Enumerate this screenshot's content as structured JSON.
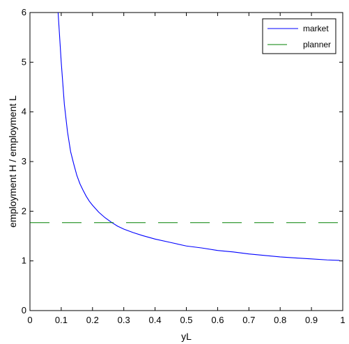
{
  "chart_data": {
    "type": "line",
    "xlabel": "yL",
    "ylabel": "employment H / employment L",
    "xlim": [
      0,
      1
    ],
    "ylim": [
      0,
      6
    ],
    "xticks": [
      0,
      0.1,
      0.2,
      0.3,
      0.4,
      0.5,
      0.6,
      0.7,
      0.8,
      0.9,
      1
    ],
    "xtick_labels": [
      "0",
      "0.1",
      "0.2",
      "0.3",
      "0.4",
      "0.5",
      "0.6",
      "0.7",
      "0.8",
      "0.9",
      "1"
    ],
    "yticks": [
      0,
      1,
      2,
      3,
      4,
      5,
      6
    ],
    "ytick_labels": [
      "0",
      "1",
      "2",
      "3",
      "4",
      "5",
      "6"
    ],
    "grid": false,
    "legend_position": "top-right",
    "series": [
      {
        "name": "market",
        "color": "#0000ff",
        "style": "solid",
        "x": [
          0.09,
          0.1,
          0.11,
          0.12,
          0.13,
          0.14,
          0.15,
          0.16,
          0.17,
          0.18,
          0.19,
          0.2,
          0.22,
          0.24,
          0.26,
          0.28,
          0.3,
          0.33,
          0.36,
          0.4,
          0.45,
          0.5,
          0.55,
          0.6,
          0.65,
          0.7,
          0.75,
          0.8,
          0.85,
          0.9,
          0.95,
          0.99
        ],
        "y": [
          6.0,
          5.0,
          4.15,
          3.6,
          3.2,
          2.95,
          2.72,
          2.55,
          2.42,
          2.3,
          2.2,
          2.12,
          1.98,
          1.87,
          1.78,
          1.7,
          1.64,
          1.57,
          1.51,
          1.44,
          1.37,
          1.3,
          1.26,
          1.21,
          1.18,
          1.14,
          1.11,
          1.08,
          1.06,
          1.04,
          1.02,
          1.01
        ]
      },
      {
        "name": "planner",
        "color": "#008000",
        "style": "dashed",
        "x": [
          0,
          1
        ],
        "y": [
          1.77,
          1.77
        ]
      }
    ]
  }
}
